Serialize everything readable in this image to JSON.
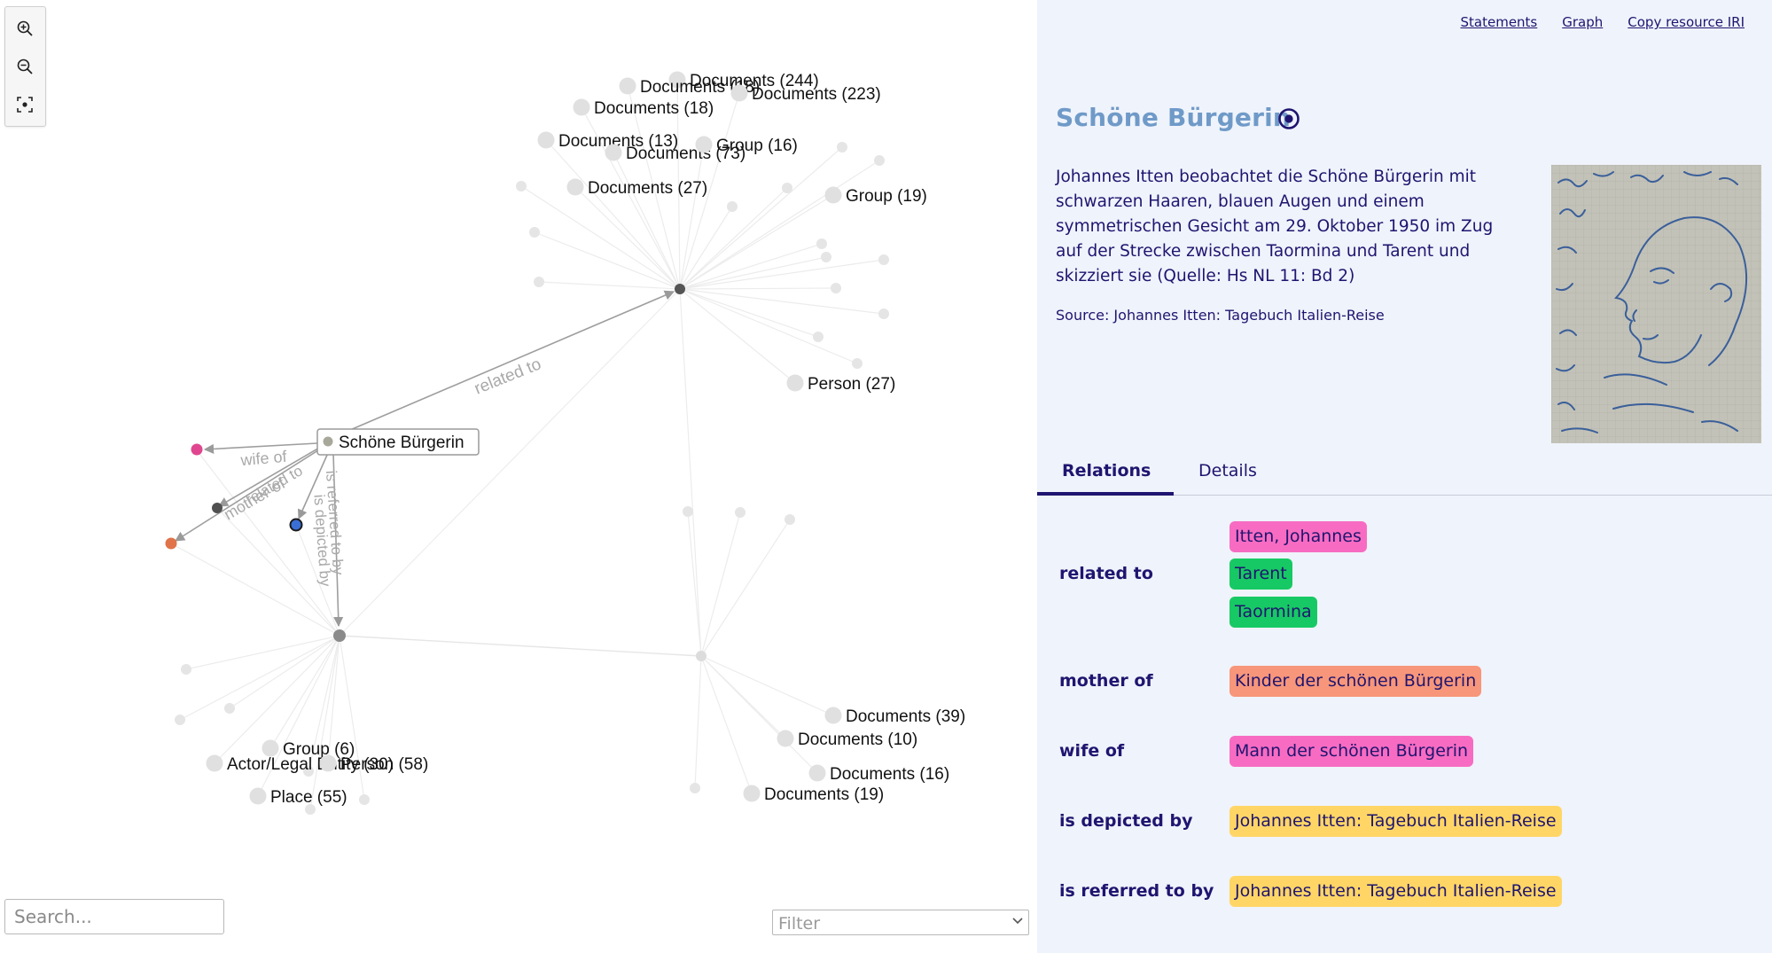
{
  "graph": {
    "search_placeholder": "Search...",
    "filter_placeholder": "Filter",
    "center_node": "Schöne Bürgerin",
    "edge_labels": {
      "related_to": "related to",
      "wife_of": "wife of",
      "mother_of": "mother of",
      "related_short": "related to",
      "depicted": "is depicted by",
      "referred": "is referred to by"
    },
    "cluster_nodes": [
      "Documents (244)",
      "Documents (18)",
      "Documents (223)",
      "Documents (18)",
      "Documents (13)",
      "Documents (73)",
      "Group (16)",
      "Documents (27)",
      "Group (19)",
      "Person (27)",
      "Documents (39)",
      "Documents (10)",
      "Documents (16)",
      "Documents (19)",
      "Group (6)",
      "Actor/Legal Entity (30)",
      "Person (58)",
      "Place (55)"
    ],
    "toolbar_icons": [
      "zoom-in-icon",
      "zoom-out-icon",
      "fit-view-icon"
    ]
  },
  "detail": {
    "links": {
      "statements": "Statements",
      "graph": "Graph",
      "copy_iri": "Copy resource IRI"
    },
    "title": "Schöne Bürgerin",
    "description": "Johannes Itten beobachtet die Schöne Bürgerin mit schwarzen Haaren, blauen Augen und einem symmetrischen Gesicht am 29. Oktober 1950 im Zug auf der Strecke zwischen Taormina und Tarent und skizziert sie (Quelle: Hs NL 11: Bd 2)",
    "source": "Source: Johannes Itten: Tagebuch Italien-Reise",
    "tabs": {
      "relations": "Relations",
      "details": "Details"
    },
    "relations": [
      {
        "label": "related to",
        "values": [
          {
            "text": "Itten, Johannes",
            "color": "#f76cc2"
          },
          {
            "text": "Tarent",
            "color": "#17c964"
          },
          {
            "text": "Taormina",
            "color": "#17c964"
          }
        ]
      },
      {
        "label": "mother of",
        "values": [
          {
            "text": "Kinder der schönen Bürgerin",
            "color": "#f7967a"
          }
        ]
      },
      {
        "label": "wife of",
        "values": [
          {
            "text": "Mann der schönen Bürgerin",
            "color": "#f76cc2"
          }
        ]
      },
      {
        "label": "is depicted by",
        "values": [
          {
            "text": "Johannes Itten: Tagebuch Italien-Reise",
            "color": "#ffd666"
          }
        ]
      },
      {
        "label": "is referred to by",
        "values": [
          {
            "text": "Johannes Itten: Tagebuch Italien-Reise",
            "color": "#ffd666"
          }
        ]
      }
    ]
  },
  "colors": {
    "navy": "#1f1570",
    "title_blue": "#6f9ac8",
    "panel_bg": "#eff3fb",
    "pink": "#f76cc2",
    "green": "#17c964",
    "salmon": "#f7967a",
    "yellow": "#ffd666"
  }
}
